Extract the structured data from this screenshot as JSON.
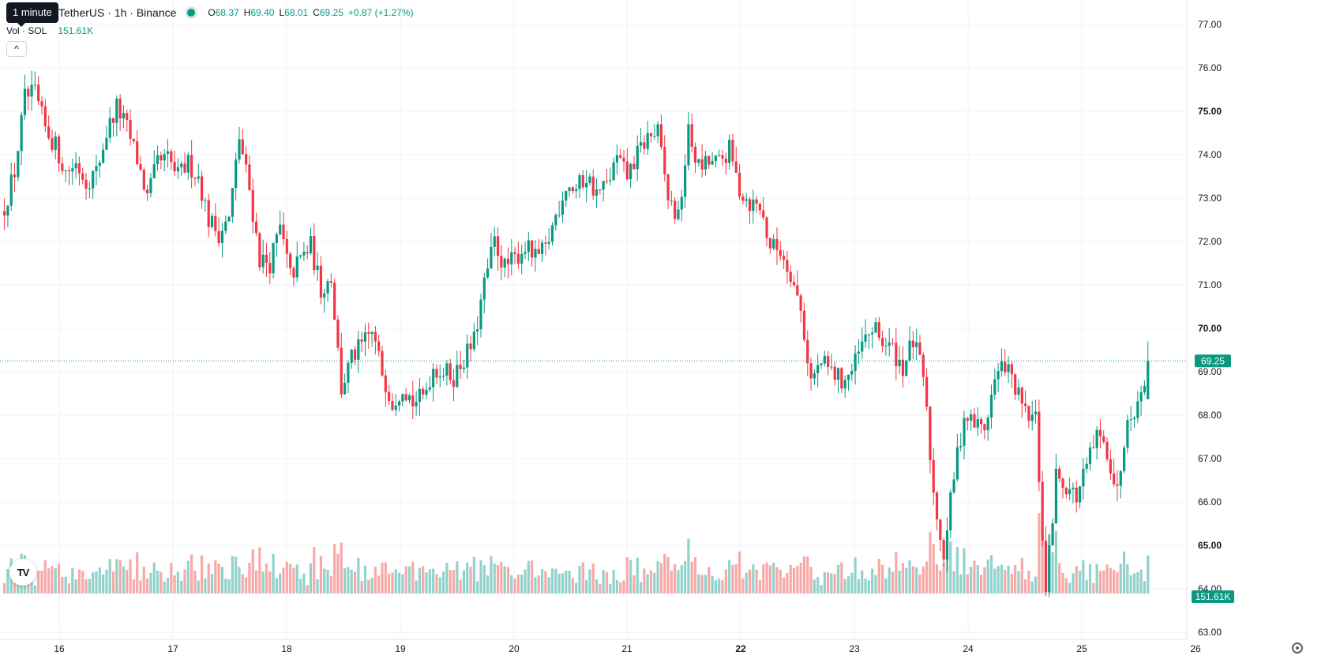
{
  "legend": {
    "symbol": "TetherUS · 1h · Binance",
    "open_label": "O",
    "open": "68.37",
    "high_label": "H",
    "high": "69.40",
    "low_label": "L",
    "low": "68.01",
    "close_label": "C",
    "close": "69.25",
    "change": "+0.87 (+1.27%)"
  },
  "tooltip": {
    "text": "1 minute"
  },
  "volume": {
    "label": "Vol · SOL",
    "value": "151.61K"
  },
  "collapse_button": {
    "label": "^"
  },
  "colors": {
    "up": "#089981",
    "down": "#f23645",
    "vol_up": "#92d2cc",
    "vol_down": "#f7a9a7",
    "grid": "#f0f3fa",
    "axis_text": "#131722"
  },
  "chart_data": {
    "type": "candlestick",
    "interval": "1h",
    "price_axis": {
      "ticks": [
        "77.00",
        "76.00",
        "75.00",
        "74.00",
        "73.00",
        "72.00",
        "71.00",
        "70.00",
        "69.00",
        "68.00",
        "67.00",
        "66.00",
        "65.00",
        "64.00",
        "63.00"
      ],
      "bold_ticks": [
        "75.00",
        "70.00",
        "65.00"
      ],
      "range": [
        62.85,
        77.3
      ]
    },
    "time_axis": {
      "labels": [
        "16",
        "17",
        "18",
        "19",
        "20",
        "21",
        "22",
        "23",
        "24",
        "25",
        "26"
      ],
      "bold_labels": [
        "22"
      ]
    },
    "last_price": "69.25",
    "last_volume": "151.61K",
    "price_path": [
      [
        0,
        72.8
      ],
      [
        3,
        73.6
      ],
      [
        6,
        75.3
      ],
      [
        9,
        75.4
      ],
      [
        12,
        74.6
      ],
      [
        15,
        74.2
      ],
      [
        18,
        73.6
      ],
      [
        21,
        73.8
      ],
      [
        24,
        73.4
      ],
      [
        27,
        73.6
      ],
      [
        30,
        74.5
      ],
      [
        33,
        75.1
      ],
      [
        36,
        74.6
      ],
      [
        39,
        73.9
      ],
      [
        42,
        73.0
      ],
      [
        45,
        73.8
      ],
      [
        48,
        73.9
      ],
      [
        51,
        73.5
      ],
      [
        54,
        73.8
      ],
      [
        57,
        73.5
      ],
      [
        60,
        72.5
      ],
      [
        63,
        72.2
      ],
      [
        66,
        72.5
      ],
      [
        69,
        74.4
      ],
      [
        72,
        73.2
      ],
      [
        75,
        71.6
      ],
      [
        78,
        71.5
      ],
      [
        81,
        72.3
      ],
      [
        84,
        71.2
      ],
      [
        87,
        71.6
      ],
      [
        90,
        71.9
      ],
      [
        93,
        70.9
      ],
      [
        96,
        71.2
      ],
      [
        99,
        68.6
      ],
      [
        102,
        69.3
      ],
      [
        105,
        69.6
      ],
      [
        108,
        69.9
      ],
      [
        111,
        69.0
      ],
      [
        114,
        68.3
      ],
      [
        117,
        68.7
      ],
      [
        120,
        68.3
      ],
      [
        123,
        68.4
      ],
      [
        126,
        69.1
      ],
      [
        129,
        69.0
      ],
      [
        132,
        68.9
      ],
      [
        135,
        69.3
      ],
      [
        138,
        69.7
      ],
      [
        141,
        71.0
      ],
      [
        144,
        72.0
      ],
      [
        147,
        71.4
      ],
      [
        150,
        71.6
      ],
      [
        153,
        71.9
      ],
      [
        156,
        71.6
      ],
      [
        159,
        71.8
      ],
      [
        162,
        72.6
      ],
      [
        165,
        73.3
      ],
      [
        168,
        73.2
      ],
      [
        171,
        73.5
      ],
      [
        174,
        73.1
      ],
      [
        177,
        73.3
      ],
      [
        180,
        73.9
      ],
      [
        183,
        73.5
      ],
      [
        186,
        74.0
      ],
      [
        189,
        74.4
      ],
      [
        192,
        74.5
      ],
      [
        195,
        73.0
      ],
      [
        198,
        72.5
      ],
      [
        201,
        74.5
      ],
      [
        204,
        73.7
      ],
      [
        207,
        73.8
      ],
      [
        210,
        73.8
      ],
      [
        213,
        74.1
      ],
      [
        216,
        73.2
      ],
      [
        219,
        72.9
      ],
      [
        222,
        72.8
      ],
      [
        225,
        71.9
      ],
      [
        228,
        71.8
      ],
      [
        231,
        71.3
      ],
      [
        234,
        70.4
      ],
      [
        237,
        68.8
      ],
      [
        240,
        69.2
      ],
      [
        243,
        69.0
      ],
      [
        246,
        68.8
      ],
      [
        249,
        69.0
      ],
      [
        252,
        69.6
      ],
      [
        255,
        70.0
      ],
      [
        258,
        69.7
      ],
      [
        261,
        69.5
      ],
      [
        264,
        69.1
      ],
      [
        267,
        69.7
      ],
      [
        270,
        68.9
      ],
      [
        273,
        66.2
      ],
      [
        276,
        64.8
      ],
      [
        279,
        66.6
      ],
      [
        282,
        68.0
      ],
      [
        285,
        67.8
      ],
      [
        288,
        67.7
      ],
      [
        291,
        68.8
      ],
      [
        294,
        69.2
      ],
      [
        297,
        68.6
      ],
      [
        300,
        68.0
      ],
      [
        303,
        67.9
      ],
      [
        306,
        63.9
      ],
      [
        309,
        66.6
      ],
      [
        312,
        66.4
      ],
      [
        315,
        66.1
      ],
      [
        318,
        66.8
      ],
      [
        321,
        67.5
      ],
      [
        324,
        67.2
      ],
      [
        327,
        66.2
      ],
      [
        330,
        68.1
      ],
      [
        333,
        68.2
      ],
      [
        336,
        69.25
      ]
    ]
  }
}
